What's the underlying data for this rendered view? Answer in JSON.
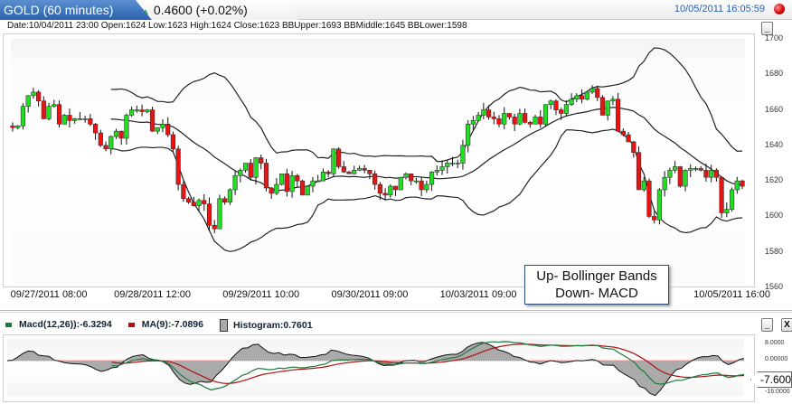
{
  "header": {
    "symbol": "GOLD (60 minutes)",
    "change": "0.4600 (+0.02%)",
    "change_direction": "up",
    "datetime": "10/05/2011 16:05:59",
    "status_icon": "record-dot-icon"
  },
  "info_line": "Date:10/04/2011 23:00 Open:1624 Low:1623 High:1624 Close:1623 BBUpper:1693 BBMiddle:1645 BBLower:1598",
  "annotation": {
    "line1": "Up- Bollinger Bands",
    "line2": "Down- MACD"
  },
  "macd_panel": {
    "macd_label": "Macd(12,26)):-6.3294",
    "ma_label": "MA(9):-7.0896",
    "hist_label": "Histogram:0.7601",
    "current_value": "-7.600",
    "minimize": "_",
    "close": "X",
    "colors": {
      "macd": "#1e7a3e",
      "ma": "#b01010",
      "hist": "#aaaaaa"
    }
  },
  "main_panel": {
    "minimize": "_"
  },
  "colors": {
    "up": "#22dd22",
    "down": "#ee1111",
    "accent": "#2a62ad"
  },
  "chart_data": [
    {
      "type": "candlestick",
      "ylim": [
        1560,
        1700
      ],
      "y_ticks": [
        "1700",
        "1680",
        "1660",
        "1640",
        "1620",
        "1600",
        "1580",
        "1560"
      ],
      "x_ticks": [
        {
          "label": "09/27/2011 08:00",
          "index": 7
        },
        {
          "label": "09/28/2011 12:00",
          "index": 27
        },
        {
          "label": "09/29/2011 10:00",
          "index": 48
        },
        {
          "label": "09/30/2011 09:00",
          "index": 69
        },
        {
          "label": "10/03/2011 09:00",
          "index": 90
        },
        {
          "label": "10/05/2011 16:00",
          "index": 139
        }
      ],
      "overlay": "Bollinger Bands(20,2)",
      "closes": [
        1650,
        1651,
        1662,
        1668,
        1670,
        1665,
        1655,
        1662,
        1663,
        1652,
        1657,
        1654,
        1655,
        1655,
        1655,
        1652,
        1647,
        1640,
        1638,
        1645,
        1648,
        1644,
        1657,
        1660,
        1660,
        1659,
        1660,
        1648,
        1650,
        1652,
        1646,
        1638,
        1618,
        1610,
        1608,
        1606,
        1609,
        1607,
        1595,
        1593,
        1610,
        1608,
        1615,
        1623,
        1626,
        1630,
        1622,
        1633,
        1630,
        1616,
        1613,
        1618,
        1624,
        1614,
        1623,
        1620,
        1612,
        1617,
        1620,
        1620,
        1625,
        1624,
        1638,
        1628,
        1625,
        1624,
        1626,
        1627,
        1626,
        1624,
        1618,
        1613,
        1612,
        1617,
        1615,
        1622,
        1624,
        1620,
        1620,
        1615,
        1618,
        1625,
        1626,
        1628,
        1630,
        1630,
        1630,
        1640,
        1652,
        1654,
        1657,
        1660,
        1656,
        1655,
        1652,
        1658,
        1656,
        1652,
        1658,
        1653,
        1652,
        1656,
        1652,
        1663,
        1665,
        1660,
        1658,
        1663,
        1666,
        1668,
        1666,
        1670,
        1672,
        1667,
        1657,
        1665,
        1666,
        1648,
        1646,
        1642,
        1636,
        1615,
        1620,
        1600,
        1598,
        1615,
        1622,
        1626,
        1628,
        1617,
        1626,
        1627,
        1627,
        1626,
        1622,
        1626,
        1622,
        1602,
        1604,
        1615,
        1620,
        1617
      ]
    },
    {
      "type": "line",
      "ylim": [
        -16,
        8
      ],
      "y_ticks": [
        "8.0000",
        "0.00000",
        "-16.0000"
      ],
      "series": [
        {
          "name": "Macd(12,26)"
        },
        {
          "name": "MA(9)"
        },
        {
          "name": "Histogram"
        }
      ]
    }
  ]
}
